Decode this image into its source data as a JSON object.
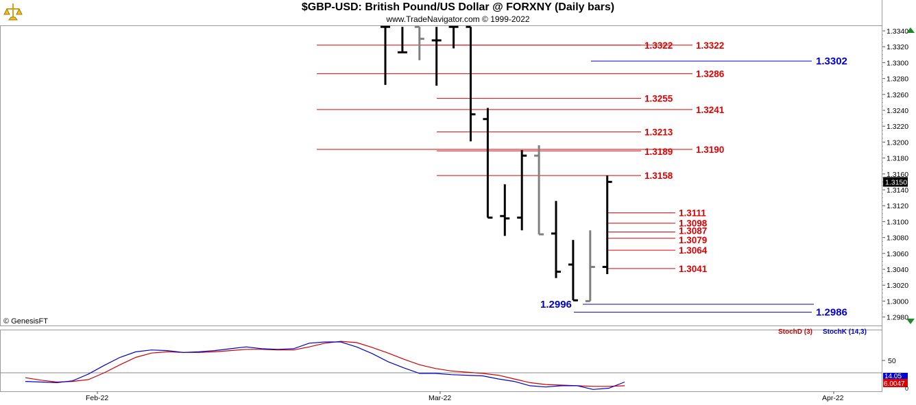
{
  "header": {
    "title": "$GBP-USD:  British Pound/US Dollar @ FORXNY  (Daily bars)",
    "copyright": "www.TradeNavigator.com © 1999-2022",
    "logo_icon": "trade-navigator-logo-icon"
  },
  "watermark": "© GenesisFT",
  "chart_data": [
    {
      "type": "bar",
      "subtype": "ohlc",
      "title": "$GBP-USD:  British Pound/US Dollar @ FORXNY  (Daily bars)",
      "ylim": [
        1.2975,
        1.3345
      ],
      "y_ticks": [
        "1.3340",
        "1.3320",
        "1.3300",
        "1.3280",
        "1.3260",
        "1.3240",
        "1.3220",
        "1.3200",
        "1.3180",
        "1.3160",
        "1.3140",
        "1.3120",
        "1.3100",
        "1.3080",
        "1.3060",
        "1.3040",
        "1.3020",
        "1.3000",
        "1.2980"
      ],
      "x_ticks": [
        "Feb-22",
        "Mar-22",
        "Apr-22"
      ],
      "last_price": "1.3150",
      "bars": [
        {
          "high": 1.3345,
          "low": 1.3272,
          "open": 1.3345,
          "close": 1.3345,
          "color": "#000000"
        },
        {
          "high": 1.3345,
          "low": 1.3313,
          "open": 1.3313,
          "close": 1.3313,
          "color": "#000000"
        },
        {
          "high": 1.3345,
          "low": 1.3303,
          "open": 1.3345,
          "close": 1.333,
          "color": "#808080"
        },
        {
          "high": 1.3345,
          "low": 1.3271,
          "open": 1.3328,
          "close": 1.3328,
          "color": "#000000"
        },
        {
          "high": 1.3345,
          "low": 1.3318,
          "open": 1.3345,
          "close": 1.3345,
          "color": "#000000"
        },
        {
          "high": 1.3345,
          "low": 1.3201,
          "open": 1.3345,
          "close": 1.3235,
          "color": "#000000"
        },
        {
          "high": 1.3243,
          "low": 1.3105,
          "open": 1.3229,
          "close": 1.3105,
          "color": "#000000"
        },
        {
          "high": 1.3147,
          "low": 1.3082,
          "open": 1.3107,
          "close": 1.3104,
          "color": "#000000"
        },
        {
          "high": 1.319,
          "low": 1.3089,
          "open": 1.3105,
          "close": 1.3183,
          "color": "#000000"
        },
        {
          "high": 1.3196,
          "low": 1.3084,
          "open": 1.3183,
          "close": 1.3084,
          "color": "#808080"
        },
        {
          "high": 1.3126,
          "low": 1.3029,
          "open": 1.3085,
          "close": 1.3037,
          "color": "#000000"
        },
        {
          "high": 1.3077,
          "low": 1.3001,
          "open": 1.3046,
          "close": 1.3001,
          "color": "#000000"
        },
        {
          "high": 1.3089,
          "low": 1.3,
          "open": 1.3,
          "close": 1.3043,
          "color": "#808080"
        },
        {
          "high": 1.3158,
          "low": 1.3034,
          "open": 1.3043,
          "close": 1.315,
          "color": "#000000"
        }
      ],
      "levels": [
        {
          "label": "1.3322",
          "value": 1.3322,
          "color": "#e00000",
          "group": "long",
          "show_label": true
        },
        {
          "label": "1.3322",
          "value": 1.3322,
          "color": "#e00000",
          "group": "mid",
          "show_label": true
        },
        {
          "label": "1.3286",
          "value": 1.3286,
          "color": "#e00000",
          "group": "long",
          "show_label": true
        },
        {
          "label": "1.3255",
          "value": 1.3255,
          "color": "#e00000",
          "group": "mid",
          "show_label": true
        },
        {
          "label": "1.3241",
          "value": 1.3241,
          "color": "#e00000",
          "group": "long",
          "show_label": true
        },
        {
          "label": "1.3213",
          "value": 1.3213,
          "color": "#e00000",
          "group": "mid",
          "show_label": true
        },
        {
          "label": "1.3190",
          "value": 1.319,
          "color": "#e00000",
          "group": "long",
          "show_label": true
        },
        {
          "label": "1.3189",
          "value": 1.3189,
          "color": "#e00000",
          "group": "mid",
          "show_label": true
        },
        {
          "label": "1.3158",
          "value": 1.3158,
          "color": "#e00000",
          "group": "mid",
          "show_label": true
        },
        {
          "label": "1.3111",
          "value": 1.3111,
          "color": "#e00000",
          "group": "short",
          "show_label": true
        },
        {
          "label": "1.3098",
          "value": 1.3098,
          "color": "#e00000",
          "group": "short",
          "show_label": true
        },
        {
          "label": "1.3087",
          "value": 1.3087,
          "color": "#e00000",
          "group": "short",
          "show_label": true
        },
        {
          "label": "1.3079",
          "value": 1.3079,
          "color": "#e00000",
          "group": "short",
          "show_label": true
        },
        {
          "label": "1.3064",
          "value": 1.3064,
          "color": "#e00000",
          "group": "short",
          "show_label": true
        },
        {
          "label": "1.3041",
          "value": 1.3041,
          "color": "#e00000",
          "group": "short",
          "show_label": true
        },
        {
          "label": "1.3302",
          "value": 1.3302,
          "color": "#0000cc",
          "group": "blue-top",
          "show_label": true
        },
        {
          "label": "1.2996",
          "value": 1.2996,
          "color": "#0000cc",
          "group": "blue-left",
          "show_label": true
        },
        {
          "label": "1.2986",
          "value": 1.2986,
          "color": "#0000cc",
          "group": "blue-right",
          "show_label": true
        }
      ]
    },
    {
      "type": "line",
      "title": "",
      "ylim": [
        0,
        100
      ],
      "y_ticks": [
        "50"
      ],
      "legend": [
        "StochD (3)",
        "StochK (14,3)"
      ],
      "series": [
        {
          "name": "StochD (3)",
          "color": "#cc0000",
          "values": [
            22,
            18,
            15,
            16,
            19,
            30,
            43,
            55,
            62,
            64,
            63,
            63,
            64,
            66,
            68,
            68,
            67,
            67,
            72,
            78,
            81,
            79,
            71,
            62,
            52,
            43,
            37,
            33,
            31,
            29,
            26,
            20,
            14,
            11,
            10,
            9,
            8,
            8,
            9
          ]
        },
        {
          "name": "StochK (14,3)",
          "color": "#0000cc",
          "values": [
            16,
            15,
            14,
            17,
            28,
            42,
            55,
            64,
            67,
            66,
            63,
            64,
            66,
            69,
            72,
            69,
            68,
            69,
            78,
            80,
            80,
            72,
            61,
            48,
            38,
            29,
            29,
            27,
            26,
            25,
            20,
            16,
            9,
            7,
            9,
            9,
            3,
            5,
            15
          ]
        }
      ],
      "last_values": [
        "14.05",
        "6.0047"
      ]
    }
  ]
}
